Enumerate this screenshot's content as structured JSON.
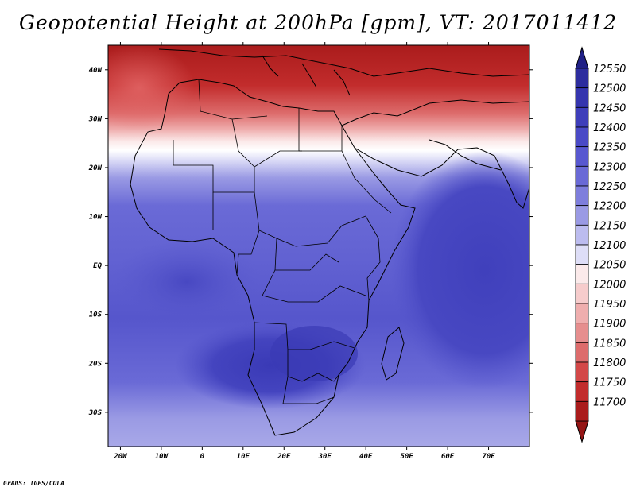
{
  "title": "Geopotential Height at 200hPa [gpm], VT: 2017011412",
  "credit": "GrADS: IGES/COLA",
  "map": {
    "lon_range": [
      -23,
      80
    ],
    "lat_range": [
      -37,
      45
    ],
    "lon_ticks": [
      -20,
      -10,
      0,
      10,
      20,
      30,
      40,
      50,
      60,
      70
    ],
    "lon_tick_labels": [
      "20W",
      "10W",
      "0",
      "10E",
      "20E",
      "30E",
      "40E",
      "50E",
      "60E",
      "70E"
    ],
    "lat_ticks": [
      40,
      30,
      20,
      10,
      0,
      -10,
      -20,
      -30
    ],
    "lat_tick_labels": [
      "40N",
      "30N",
      "20N",
      "10N",
      "EQ",
      "10S",
      "20S",
      "30S"
    ]
  },
  "colorbar": {
    "levels": [
      12550,
      12500,
      12450,
      12400,
      12350,
      12300,
      12250,
      12200,
      12150,
      12100,
      12050,
      12000,
      11950,
      11900,
      11850,
      11800,
      11750,
      11700
    ],
    "labels": [
      "12550",
      "12500",
      "12450",
      "12400",
      "12350",
      "12300",
      "12250",
      "12200",
      "12150",
      "12100",
      "12050",
      "12000",
      "11950",
      "11900",
      "11850",
      "11800",
      "11750",
      "11700"
    ],
    "colors": [
      "#2d2d9e",
      "#3535ae",
      "#3e3eba",
      "#4a4ac6",
      "#5858d0",
      "#6a6ad6",
      "#7e7edc",
      "#9a9ae4",
      "#bcbcef",
      "#dedef7",
      "#fbeaea",
      "#f6cccc",
      "#efaeae",
      "#e68e8e",
      "#dd6c6c",
      "#d34848",
      "#c22c2c",
      "#aa1c1c"
    ],
    "top_arrow_color": "#202086",
    "bottom_arrow_color": "#951515"
  }
}
